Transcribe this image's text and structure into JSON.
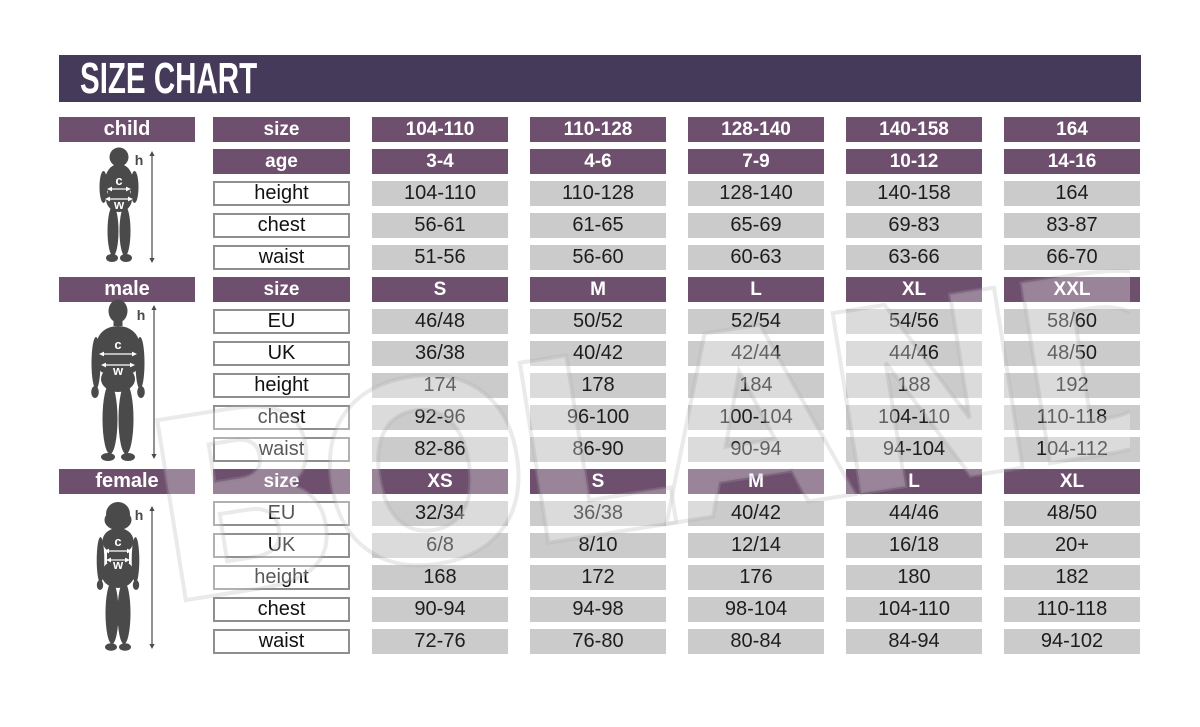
{
  "title": "SIZE CHART",
  "watermark": "BOLAND",
  "figure_labels": {
    "height": "h",
    "chest": "c",
    "waist": "w"
  },
  "colors": {
    "title_bar": "#453A5A",
    "header_cell": "#6E4F6E",
    "value_cell": "#CBCBCB",
    "silhouette": "#4A4A4A"
  },
  "sections": [
    {
      "id": "child",
      "label": "child",
      "rows": [
        {
          "label": "size",
          "header": true,
          "values": [
            "104-110",
            "110-128",
            "128-140",
            "140-158",
            "164"
          ]
        },
        {
          "label": "age",
          "header": true,
          "values": [
            "3-4",
            "4-6",
            "7-9",
            "10-12",
            "14-16"
          ]
        },
        {
          "label": "height",
          "header": false,
          "values": [
            "104-110",
            "110-128",
            "128-140",
            "140-158",
            "164"
          ]
        },
        {
          "label": "chest",
          "header": false,
          "values": [
            "56-61",
            "61-65",
            "65-69",
            "69-83",
            "83-87"
          ]
        },
        {
          "label": "waist",
          "header": false,
          "values": [
            "51-56",
            "56-60",
            "60-63",
            "63-66",
            "66-70"
          ]
        }
      ]
    },
    {
      "id": "male",
      "label": "male",
      "rows": [
        {
          "label": "size",
          "header": true,
          "values": [
            "S",
            "M",
            "L",
            "XL",
            "XXL"
          ]
        },
        {
          "label": "EU",
          "header": false,
          "values": [
            "46/48",
            "50/52",
            "52/54",
            "54/56",
            "58/60"
          ]
        },
        {
          "label": "UK",
          "header": false,
          "values": [
            "36/38",
            "40/42",
            "42/44",
            "44/46",
            "48/50"
          ]
        },
        {
          "label": "height",
          "header": false,
          "values": [
            "174",
            "178",
            "184",
            "188",
            "192"
          ]
        },
        {
          "label": "chest",
          "header": false,
          "values": [
            "92-96",
            "96-100",
            "100-104",
            "104-110",
            "110-118"
          ]
        },
        {
          "label": "waist",
          "header": false,
          "values": [
            "82-86",
            "86-90",
            "90-94",
            "94-104",
            "104-112"
          ]
        }
      ]
    },
    {
      "id": "female",
      "label": "female",
      "rows": [
        {
          "label": "size",
          "header": true,
          "values": [
            "XS",
            "S",
            "M",
            "L",
            "XL"
          ]
        },
        {
          "label": "EU",
          "header": false,
          "values": [
            "32/34",
            "36/38",
            "40/42",
            "44/46",
            "48/50"
          ]
        },
        {
          "label": "UK",
          "header": false,
          "values": [
            "6/8",
            "8/10",
            "12/14",
            "16/18",
            "20+"
          ]
        },
        {
          "label": "height",
          "header": false,
          "values": [
            "168",
            "172",
            "176",
            "180",
            "182"
          ]
        },
        {
          "label": "chest",
          "header": false,
          "values": [
            "90-94",
            "94-98",
            "98-104",
            "104-110",
            "110-118"
          ]
        },
        {
          "label": "waist",
          "header": false,
          "values": [
            "72-76",
            "76-80",
            "80-84",
            "84-94",
            "94-102"
          ]
        }
      ]
    }
  ],
  "chart_data": {
    "type": "table",
    "title": "SIZE CHART",
    "tables": [
      {
        "name": "child",
        "row_headers": [
          "size",
          "age",
          "height",
          "chest",
          "waist"
        ],
        "rows": [
          [
            "104-110",
            "110-128",
            "128-140",
            "140-158",
            "164"
          ],
          [
            "3-4",
            "4-6",
            "7-9",
            "10-12",
            "14-16"
          ],
          [
            "104-110",
            "110-128",
            "128-140",
            "140-158",
            "164"
          ],
          [
            "56-61",
            "61-65",
            "65-69",
            "69-83",
            "83-87"
          ],
          [
            "51-56",
            "56-60",
            "60-63",
            "63-66",
            "66-70"
          ]
        ]
      },
      {
        "name": "male",
        "row_headers": [
          "size",
          "EU",
          "UK",
          "height",
          "chest",
          "waist"
        ],
        "rows": [
          [
            "S",
            "M",
            "L",
            "XL",
            "XXL"
          ],
          [
            "46/48",
            "50/52",
            "52/54",
            "54/56",
            "58/60"
          ],
          [
            "36/38",
            "40/42",
            "42/44",
            "44/46",
            "48/50"
          ],
          [
            "174",
            "178",
            "184",
            "188",
            "192"
          ],
          [
            "92-96",
            "96-100",
            "100-104",
            "104-110",
            "110-118"
          ],
          [
            "82-86",
            "86-90",
            "90-94",
            "94-104",
            "104-112"
          ]
        ]
      },
      {
        "name": "female",
        "row_headers": [
          "size",
          "EU",
          "UK",
          "height",
          "chest",
          "waist"
        ],
        "rows": [
          [
            "XS",
            "S",
            "M",
            "L",
            "XL"
          ],
          [
            "32/34",
            "36/38",
            "40/42",
            "44/46",
            "48/50"
          ],
          [
            "6/8",
            "8/10",
            "12/14",
            "16/18",
            "20+"
          ],
          [
            "168",
            "172",
            "176",
            "180",
            "182"
          ],
          [
            "90-94",
            "94-98",
            "98-104",
            "104-110",
            "110-118"
          ],
          [
            "72-76",
            "76-80",
            "80-84",
            "84-94",
            "94-102"
          ]
        ]
      }
    ]
  }
}
